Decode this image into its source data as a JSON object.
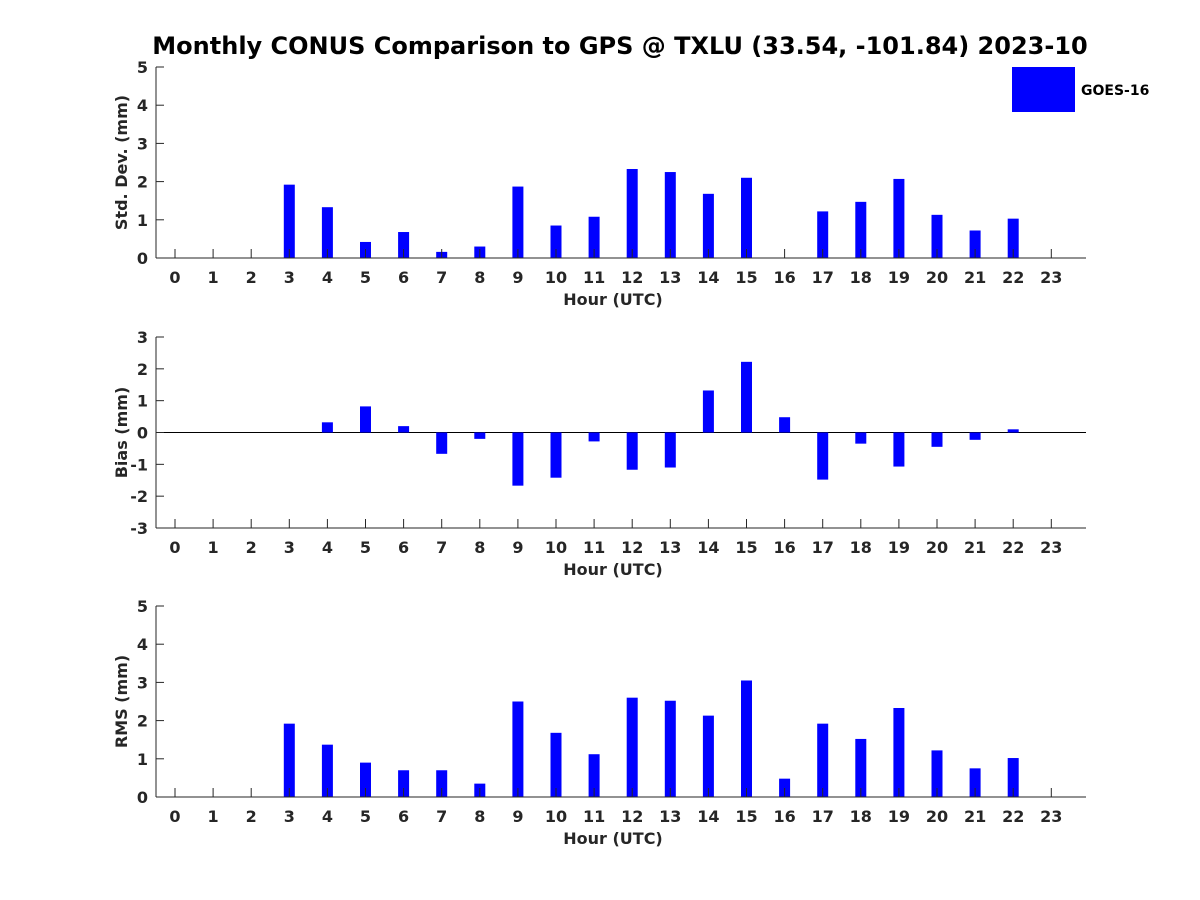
{
  "chart_data": [
    {
      "type": "bar",
      "title": "Monthly CONUS Comparison to GPS @ TXLU (33.54, -101.84) 2023-10",
      "xlabel": "Hour (UTC)",
      "ylabel": "Std. Dev. (mm)",
      "ylim": [
        0,
        5
      ],
      "yticks": [
        0,
        1,
        2,
        3,
        4,
        5
      ],
      "categories": [
        0,
        1,
        2,
        3,
        4,
        5,
        6,
        7,
        8,
        9,
        10,
        11,
        12,
        13,
        14,
        15,
        16,
        17,
        18,
        19,
        20,
        21,
        22,
        23
      ],
      "series": [
        {
          "name": "GOES-16",
          "values": [
            0,
            0,
            0,
            1.92,
            1.33,
            0.42,
            0.68,
            0.16,
            0.3,
            1.87,
            0.85,
            1.08,
            2.33,
            2.25,
            1.68,
            2.1,
            0,
            1.22,
            1.47,
            2.07,
            1.13,
            0.72,
            1.03,
            0
          ]
        }
      ],
      "grid": false,
      "legend": "top-right"
    },
    {
      "type": "bar",
      "xlabel": "Hour (UTC)",
      "ylabel": "Bias (mm)",
      "ylim": [
        -3,
        3
      ],
      "yticks": [
        -3,
        -2,
        -1,
        0,
        1,
        2,
        3
      ],
      "categories": [
        0,
        1,
        2,
        3,
        4,
        5,
        6,
        7,
        8,
        9,
        10,
        11,
        12,
        13,
        14,
        15,
        16,
        17,
        18,
        19,
        20,
        21,
        22,
        23
      ],
      "series": [
        {
          "name": "GOES-16",
          "values": [
            0,
            0,
            0,
            0,
            0.32,
            0.82,
            0.2,
            -0.67,
            -0.2,
            -1.67,
            -1.42,
            -0.28,
            -1.17,
            -1.1,
            1.32,
            2.22,
            0.48,
            -1.48,
            -0.35,
            -1.07,
            -0.45,
            -0.23,
            0.1,
            0
          ]
        }
      ],
      "grid": false,
      "zero_line": true
    },
    {
      "type": "bar",
      "xlabel": "Hour (UTC)",
      "ylabel": "RMS (mm)",
      "ylim": [
        0,
        5
      ],
      "yticks": [
        0,
        1,
        2,
        3,
        4,
        5
      ],
      "categories": [
        0,
        1,
        2,
        3,
        4,
        5,
        6,
        7,
        8,
        9,
        10,
        11,
        12,
        13,
        14,
        15,
        16,
        17,
        18,
        19,
        20,
        21,
        22,
        23
      ],
      "series": [
        {
          "name": "GOES-16",
          "values": [
            0,
            0,
            0,
            1.92,
            1.37,
            0.9,
            0.7,
            0.7,
            0.35,
            2.5,
            1.68,
            1.12,
            2.6,
            2.52,
            2.13,
            3.05,
            0.48,
            1.92,
            1.52,
            2.33,
            1.22,
            0.75,
            1.02,
            0
          ]
        }
      ],
      "grid": false
    }
  ],
  "legend": {
    "label": "GOES-16"
  },
  "colors": {
    "bar": "#0000ff",
    "axis": "#262626"
  }
}
